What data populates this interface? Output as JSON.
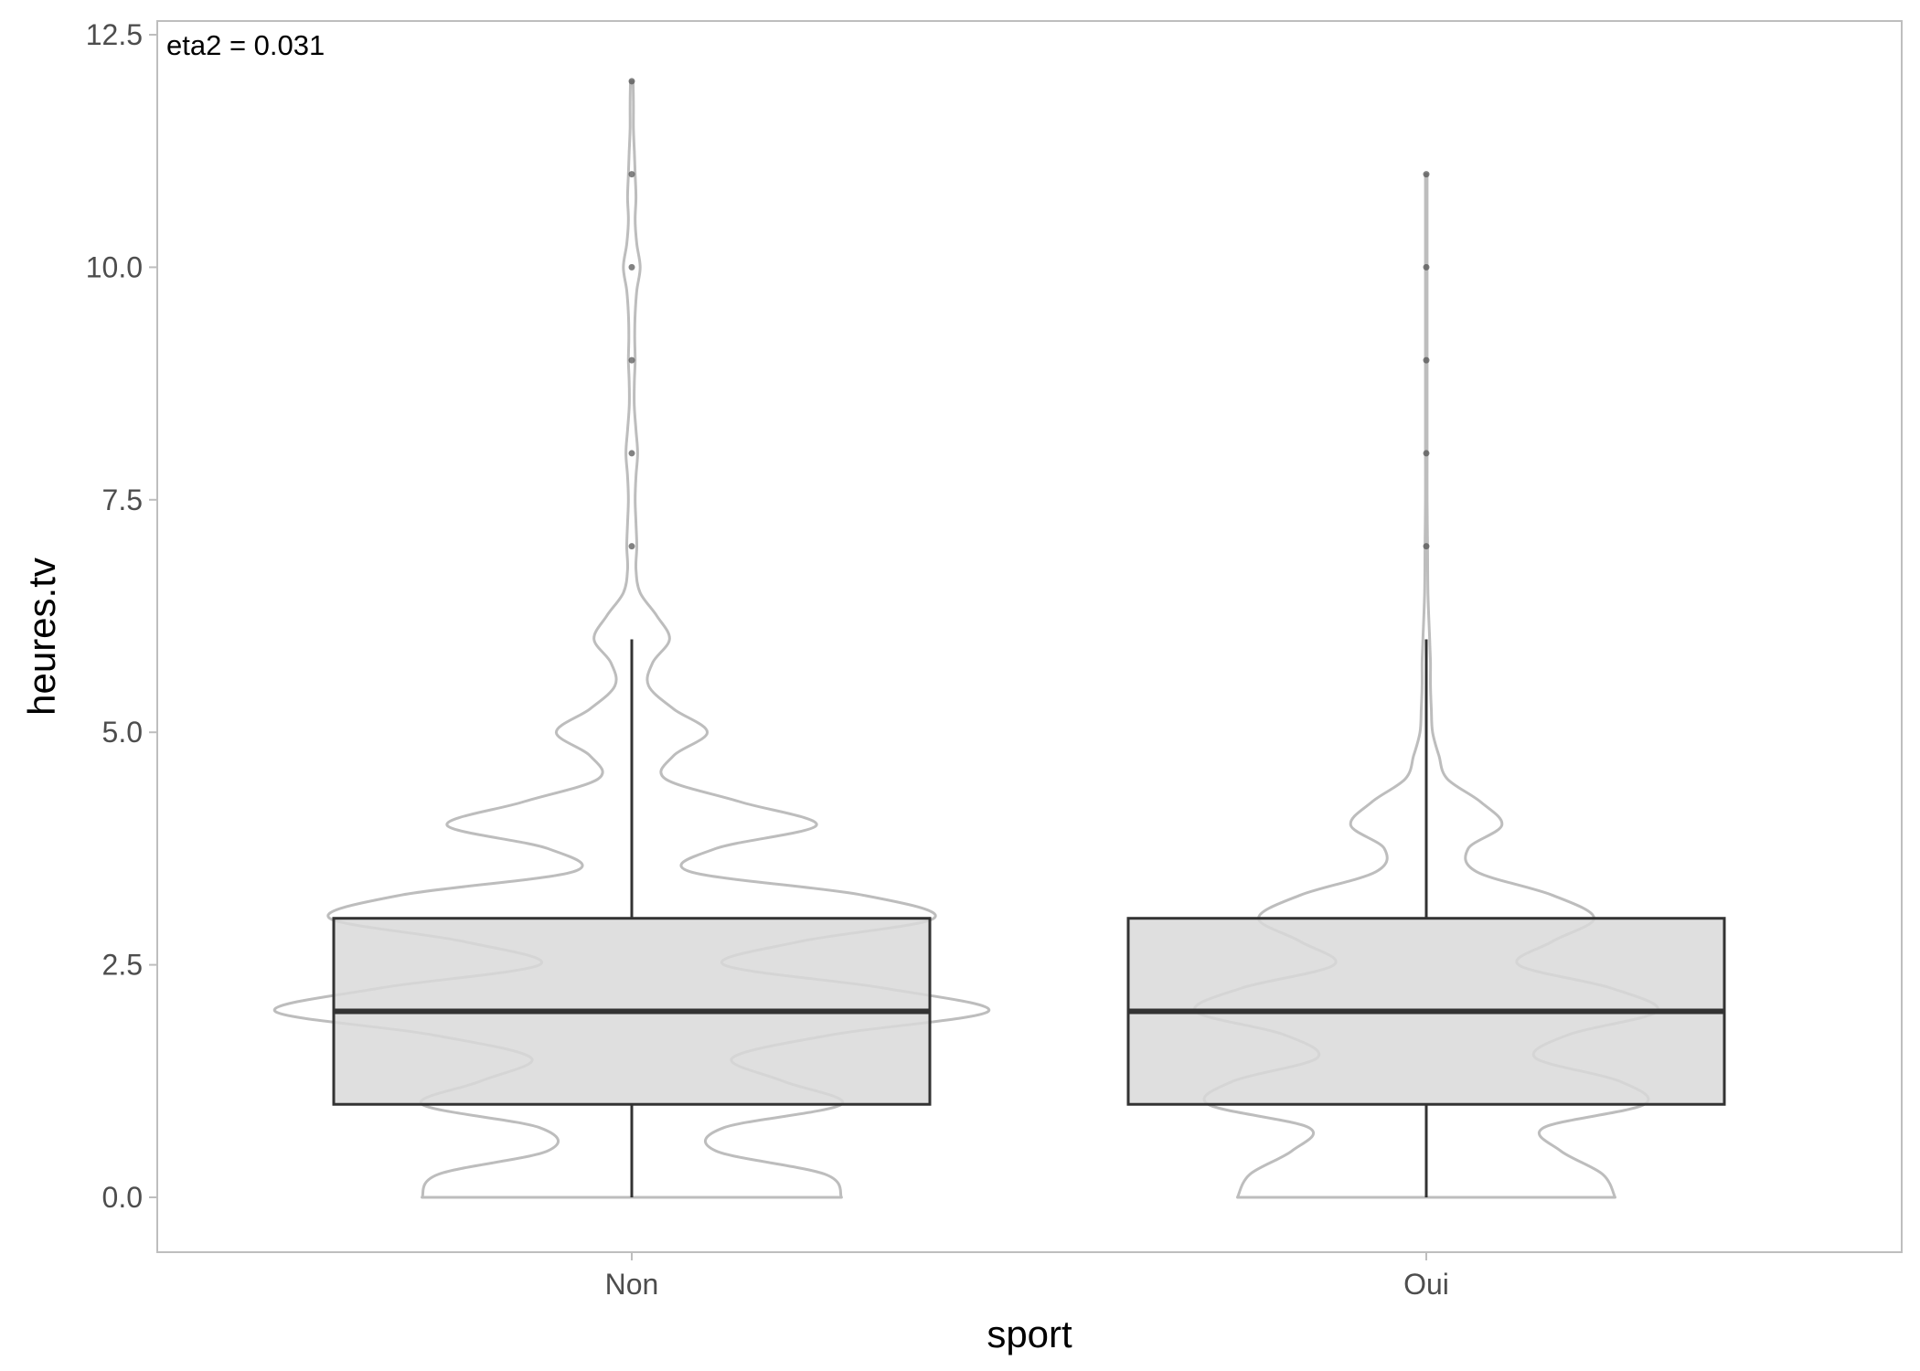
{
  "chart_data": {
    "type": "violin-box",
    "xlabel": "sport",
    "ylabel": "heures.tv",
    "ylim": [
      -0.6,
      12.6
    ],
    "yticks": [
      0.0,
      2.5,
      5.0,
      7.5,
      10.0,
      12.5
    ],
    "ytick_labels": [
      "0.0",
      "2.5",
      "5.0",
      "7.5",
      "10.0",
      "12.5"
    ],
    "grid": false,
    "legend": "none",
    "annotation": {
      "text": "eta2 = 0.031",
      "placement": "top-left"
    },
    "categories": [
      "Non",
      "Oui"
    ],
    "boxes": [
      {
        "category": "Non",
        "whisker_low": 0,
        "q1": 1,
        "median": 2,
        "q3": 3,
        "whisker_high": 6,
        "outliers": [
          7,
          8,
          9,
          10,
          11,
          12
        ]
      },
      {
        "category": "Oui",
        "whisker_low": 0,
        "q1": 1,
        "median": 2,
        "q3": 3,
        "whisker_high": 6,
        "outliers": [
          7,
          8,
          9,
          10,
          11
        ]
      }
    ],
    "violins": [
      {
        "category": "Non",
        "density": [
          [
            0,
            0.5
          ],
          [
            0.25,
            0.46
          ],
          [
            0.5,
            0.2
          ],
          [
            0.75,
            0.22
          ],
          [
            1.0,
            0.5
          ],
          [
            1.25,
            0.36
          ],
          [
            1.5,
            0.24
          ],
          [
            1.75,
            0.48
          ],
          [
            2.0,
            0.85
          ],
          [
            2.25,
            0.6
          ],
          [
            2.5,
            0.22
          ],
          [
            2.75,
            0.4
          ],
          [
            3.0,
            0.72
          ],
          [
            3.25,
            0.55
          ],
          [
            3.5,
            0.14
          ],
          [
            3.75,
            0.2
          ],
          [
            4.0,
            0.44
          ],
          [
            4.25,
            0.26
          ],
          [
            4.5,
            0.08
          ],
          [
            4.75,
            0.1
          ],
          [
            5.0,
            0.18
          ],
          [
            5.25,
            0.1
          ],
          [
            5.5,
            0.04
          ],
          [
            5.75,
            0.05
          ],
          [
            6.0,
            0.09
          ],
          [
            6.25,
            0.06
          ],
          [
            6.5,
            0.02
          ],
          [
            6.75,
            0.01
          ],
          [
            7.0,
            0.012
          ],
          [
            7.25,
            0.01
          ],
          [
            7.5,
            0.008
          ],
          [
            7.75,
            0.01
          ],
          [
            8.0,
            0.014
          ],
          [
            8.25,
            0.01
          ],
          [
            8.5,
            0.006
          ],
          [
            8.75,
            0.006
          ],
          [
            9.0,
            0.008
          ],
          [
            9.25,
            0.007
          ],
          [
            9.5,
            0.008
          ],
          [
            9.75,
            0.012
          ],
          [
            10.0,
            0.02
          ],
          [
            10.25,
            0.012
          ],
          [
            10.5,
            0.008
          ],
          [
            10.75,
            0.01
          ],
          [
            11.0,
            0.008
          ],
          [
            11.25,
            0.006
          ],
          [
            11.5,
            0.004
          ],
          [
            11.75,
            0.004
          ],
          [
            12.0,
            0.003
          ]
        ]
      },
      {
        "category": "Oui",
        "density": [
          [
            0,
            0.45
          ],
          [
            0.25,
            0.42
          ],
          [
            0.5,
            0.32
          ],
          [
            0.75,
            0.28
          ],
          [
            1.0,
            0.52
          ],
          [
            1.25,
            0.46
          ],
          [
            1.5,
            0.26
          ],
          [
            1.75,
            0.34
          ],
          [
            2.0,
            0.55
          ],
          [
            2.25,
            0.44
          ],
          [
            2.5,
            0.22
          ],
          [
            2.75,
            0.3
          ],
          [
            3.0,
            0.4
          ],
          [
            3.25,
            0.3
          ],
          [
            3.5,
            0.12
          ],
          [
            3.75,
            0.1
          ],
          [
            4.0,
            0.18
          ],
          [
            4.25,
            0.13
          ],
          [
            4.5,
            0.05
          ],
          [
            4.75,
            0.03
          ],
          [
            5.0,
            0.015
          ],
          [
            5.25,
            0.012
          ],
          [
            5.5,
            0.01
          ],
          [
            5.75,
            0.01
          ],
          [
            6.0,
            0.008
          ],
          [
            6.5,
            0.004
          ],
          [
            7.0,
            0.003
          ],
          [
            7.5,
            0.002
          ],
          [
            8.0,
            0.002
          ],
          [
            8.5,
            0.002
          ],
          [
            9.0,
            0.002
          ],
          [
            9.5,
            0.002
          ],
          [
            10.0,
            0.002
          ],
          [
            10.5,
            0.002
          ],
          [
            11.0,
            0.002
          ]
        ]
      }
    ],
    "colors": {
      "box_fill": "#d9d9d9",
      "box_line": "#333333",
      "violin_line": "#bdbdbd",
      "panel_border": "#bebebe",
      "point": "#4d4d4d",
      "tick_text": "#4d4d4d"
    }
  }
}
